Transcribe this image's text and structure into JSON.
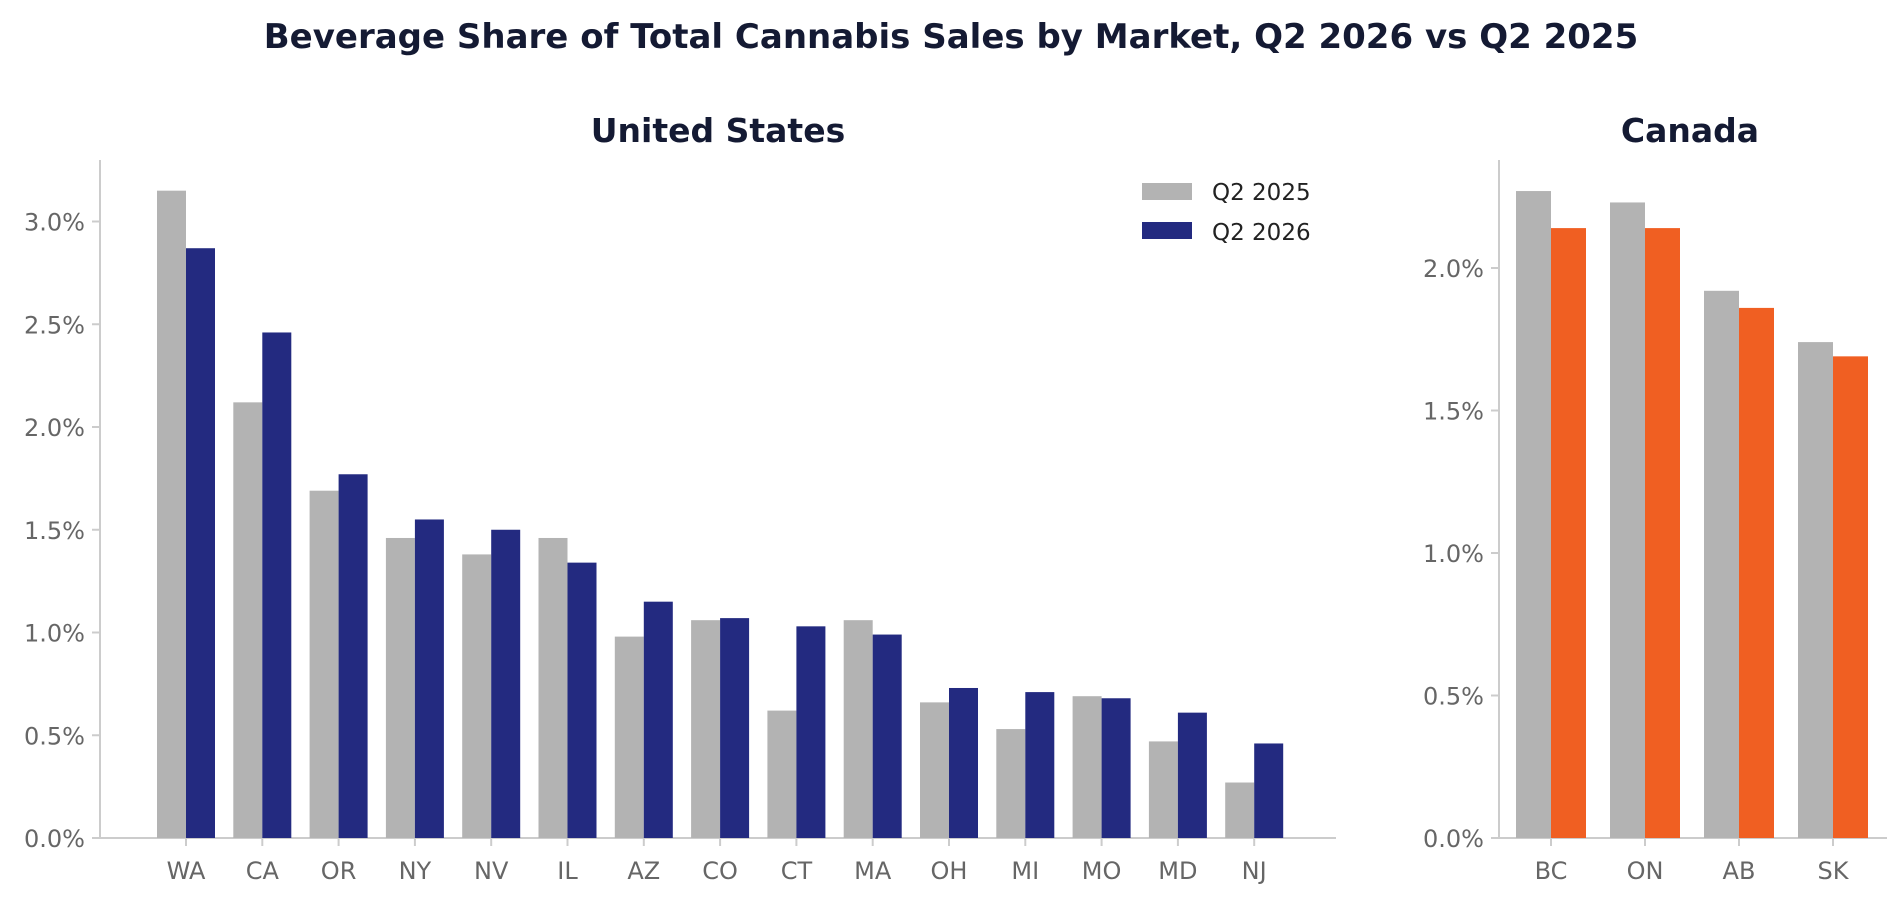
{
  "chart_title": "Beverage Share of Total Cannabis Sales by Market, Q2 2026 vs Q2 2025",
  "chart_data": [
    {
      "type": "bar",
      "title": "United States",
      "categories": [
        "WA",
        "CA",
        "OR",
        "NY",
        "NV",
        "IL",
        "AZ",
        "CO",
        "CT",
        "MA",
        "OH",
        "MI",
        "MO",
        "MD",
        "NJ"
      ],
      "series": [
        {
          "name": "Q2 2025",
          "color": "#b3b3b3",
          "values": [
            3.15,
            2.12,
            1.69,
            1.46,
            1.38,
            1.46,
            0.98,
            1.06,
            0.62,
            1.06,
            0.66,
            0.53,
            0.69,
            0.47,
            0.27
          ]
        },
        {
          "name": "Q2 2026",
          "color": "#232a80",
          "values": [
            2.87,
            2.46,
            1.77,
            1.55,
            1.5,
            1.34,
            1.15,
            1.07,
            1.03,
            0.99,
            0.73,
            0.71,
            0.68,
            0.61,
            0.46
          ]
        }
      ],
      "ylim": [
        0,
        3.3
      ],
      "yticks": [
        0,
        0.5,
        1.0,
        1.5,
        2.0,
        2.5,
        3.0
      ],
      "ytick_labels": [
        "0.0%",
        "0.5%",
        "1.0%",
        "1.5%",
        "2.0%",
        "2.5%",
        "3.0%"
      ],
      "legend": "top-right",
      "grid": false
    },
    {
      "type": "bar",
      "title": "Canada",
      "categories": [
        "BC",
        "ON",
        "AB",
        "SK"
      ],
      "series": [
        {
          "name": "Q2 2025",
          "color": "#b3b3b3",
          "values": [
            2.27,
            2.23,
            1.92,
            1.74
          ]
        },
        {
          "name": "Q2 2026",
          "color": "#f05f22",
          "values": [
            2.14,
            2.14,
            1.86,
            1.69
          ]
        }
      ],
      "ylim": [
        0,
        2.38
      ],
      "yticks": [
        0,
        0.5,
        1.0,
        1.5,
        2.0
      ],
      "ytick_labels": [
        "0.0%",
        "0.5%",
        "1.0%",
        "1.5%",
        "2.0%"
      ],
      "grid": false
    }
  ]
}
